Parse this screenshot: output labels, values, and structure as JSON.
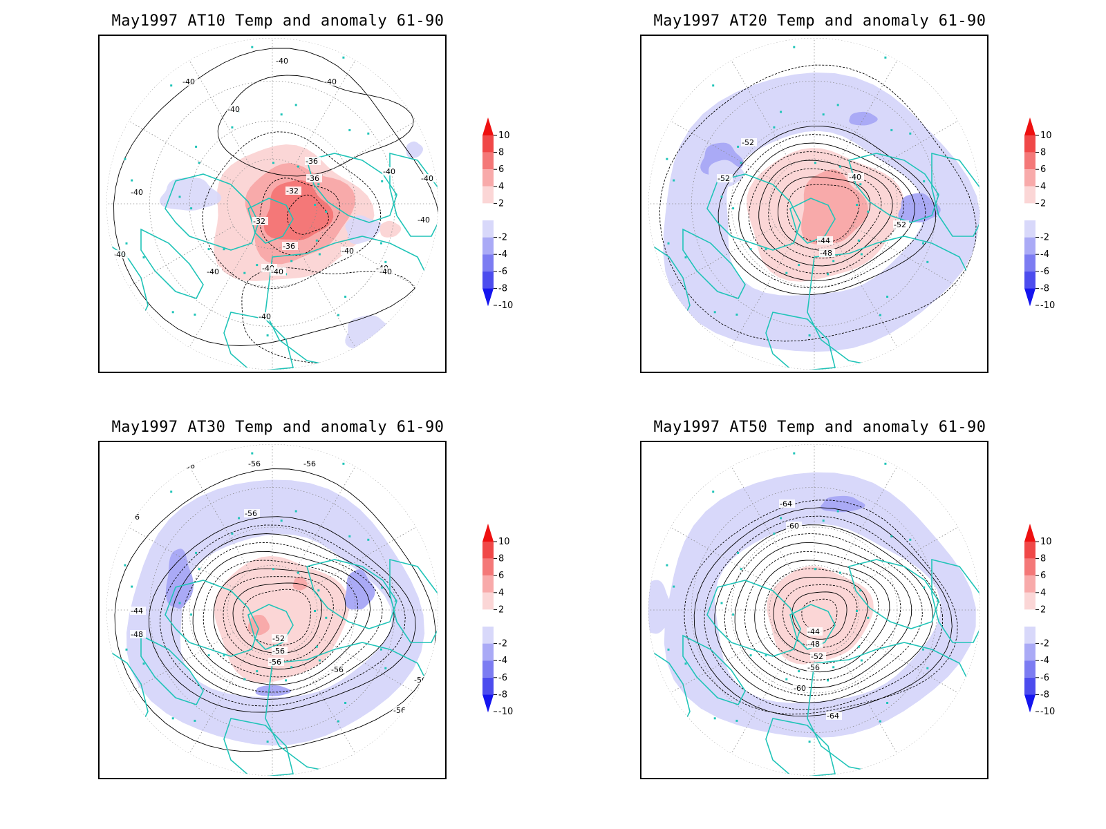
{
  "colorbar": {
    "ticks": [
      "10",
      "8",
      "6",
      "4",
      "2",
      "-2",
      "-4",
      "-6",
      "-8",
      "-10"
    ],
    "colors": [
      "#ee1010",
      "#f04848",
      "#f47878",
      "#f8aaaa",
      "#fbd6d6",
      "#ffffff",
      "#d8d8fa",
      "#aaaaf6",
      "#7c7cf2",
      "#4c4cee",
      "#1515ee"
    ]
  },
  "coastline_color": "#20c4b8",
  "panels": [
    {
      "title": "May1997 AT10 Temp and anomaly 61-90",
      "contour_labels": [
        "-40",
        "-40",
        "-40",
        "-40",
        "-36",
        "-36",
        "-32",
        "-32",
        "-36",
        "-40",
        "-40",
        "-40",
        "-40",
        "-40",
        "-40",
        "-40",
        "-40",
        "-40",
        "-40",
        "-40",
        "-40",
        "-40"
      ]
    },
    {
      "title": "May1997 AT20 Temp and anomaly 61-90",
      "contour_labels": [
        "-52",
        "-52",
        "-40",
        "-52",
        "-44",
        "-48"
      ]
    },
    {
      "title": "May1997 AT30 Temp and anomaly 61-90",
      "contour_labels": [
        "-56",
        "-56",
        "-56",
        "-56",
        "-56",
        "-56",
        "-44",
        "-48",
        "-52",
        "-56",
        "-56",
        "-56",
        "-56",
        "-56"
      ]
    },
    {
      "title": "May1997 AT50 Temp and anomaly 61-90",
      "contour_labels": [
        "-64",
        "-60",
        "-44",
        "-48",
        "-52",
        "-56",
        "-60",
        "-64"
      ]
    }
  ]
}
